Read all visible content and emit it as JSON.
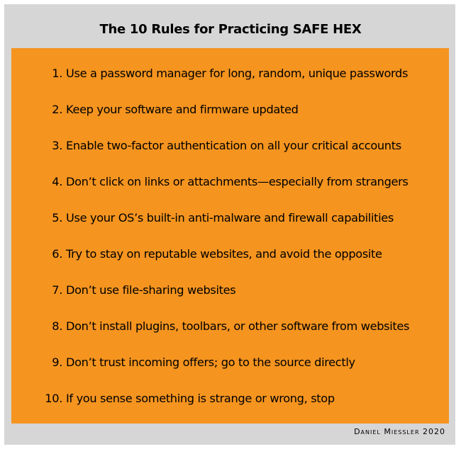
{
  "title": "The 10 Rules for Practicing SAFE HEX",
  "colors": {
    "panel": "#f5941f",
    "frame": "#d6d6d6",
    "text": "#000000"
  },
  "rules": [
    {
      "number": "1.",
      "text": "Use a password manager for long, random, unique passwords"
    },
    {
      "number": "2.",
      "text": "Keep your software and firmware updated"
    },
    {
      "number": "3.",
      "text": "Enable two-factor authentication on all your critical accounts"
    },
    {
      "number": "4.",
      "text": "Don’t click on links or attachments—especially from strangers"
    },
    {
      "number": "5.",
      "text": "Use your OS’s built-in anti-malware and firewall capabilities"
    },
    {
      "number": "6.",
      "text": "Try to stay on reputable websites, and avoid the opposite"
    },
    {
      "number": "7.",
      "text": "Don’t use file-sharing websites"
    },
    {
      "number": "8.",
      "text": "Don’t install plugins, toolbars, or other software from websites"
    },
    {
      "number": "9.",
      "text": "Don’t trust incoming offers; go to the source directly"
    },
    {
      "number": "10.",
      "text": "If you sense something is strange or wrong, stop"
    }
  ],
  "credit": "Daniel Miessler 2020"
}
